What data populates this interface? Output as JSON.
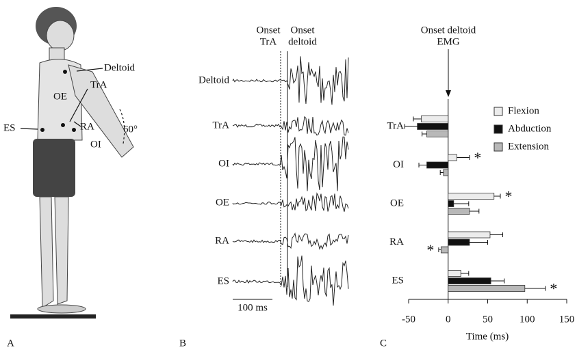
{
  "panel_a": {
    "letter": "A",
    "labels": {
      "deltoid": "Deltoid",
      "tra": "TrA",
      "oe": "OE",
      "es": "ES",
      "ra": "RA",
      "oi": "OI",
      "angle": "60°"
    }
  },
  "panel_b": {
    "letter": "B",
    "onset_tra": [
      "Onset",
      "TrA"
    ],
    "onset_deltoid": [
      "Onset",
      "deltoid"
    ],
    "muscles": [
      "Deltoid",
      "TrA",
      "OI",
      "OE",
      "RA",
      "ES"
    ],
    "scale_bar": "100 ms"
  },
  "chart_data": {
    "type": "bar",
    "orientation": "horizontal",
    "panel_letter": "C",
    "annotation": [
      "Onset deltoid",
      "EMG"
    ],
    "x_label": "Time (ms)",
    "categories": [
      "TrA",
      "OI",
      "OE",
      "RA",
      "ES"
    ],
    "series": [
      {
        "name": "Flexion",
        "color": "#ececec",
        "values": [
          -34,
          11,
          58,
          53,
          16
        ],
        "errors": [
          10,
          16,
          8,
          16,
          10
        ],
        "markers": [
          null,
          "*",
          "*",
          null,
          null
        ]
      },
      {
        "name": "Abduction",
        "color": "#111111",
        "values": [
          -39,
          -27,
          7,
          27,
          54
        ],
        "errors": [
          16,
          10,
          19,
          23,
          17
        ],
        "markers": [
          null,
          null,
          null,
          null,
          null
        ]
      },
      {
        "name": "Extension",
        "color": "#b8b8b8",
        "values": [
          -27,
          -6,
          27,
          -9,
          97
        ],
        "errors": [
          6,
          4,
          12,
          3,
          26
        ],
        "markers": [
          null,
          null,
          null,
          "*",
          "*"
        ]
      }
    ],
    "xlim": [
      -50,
      150
    ],
    "xticks": [
      -50,
      0,
      50,
      100,
      150
    ],
    "legend": "top-right"
  }
}
